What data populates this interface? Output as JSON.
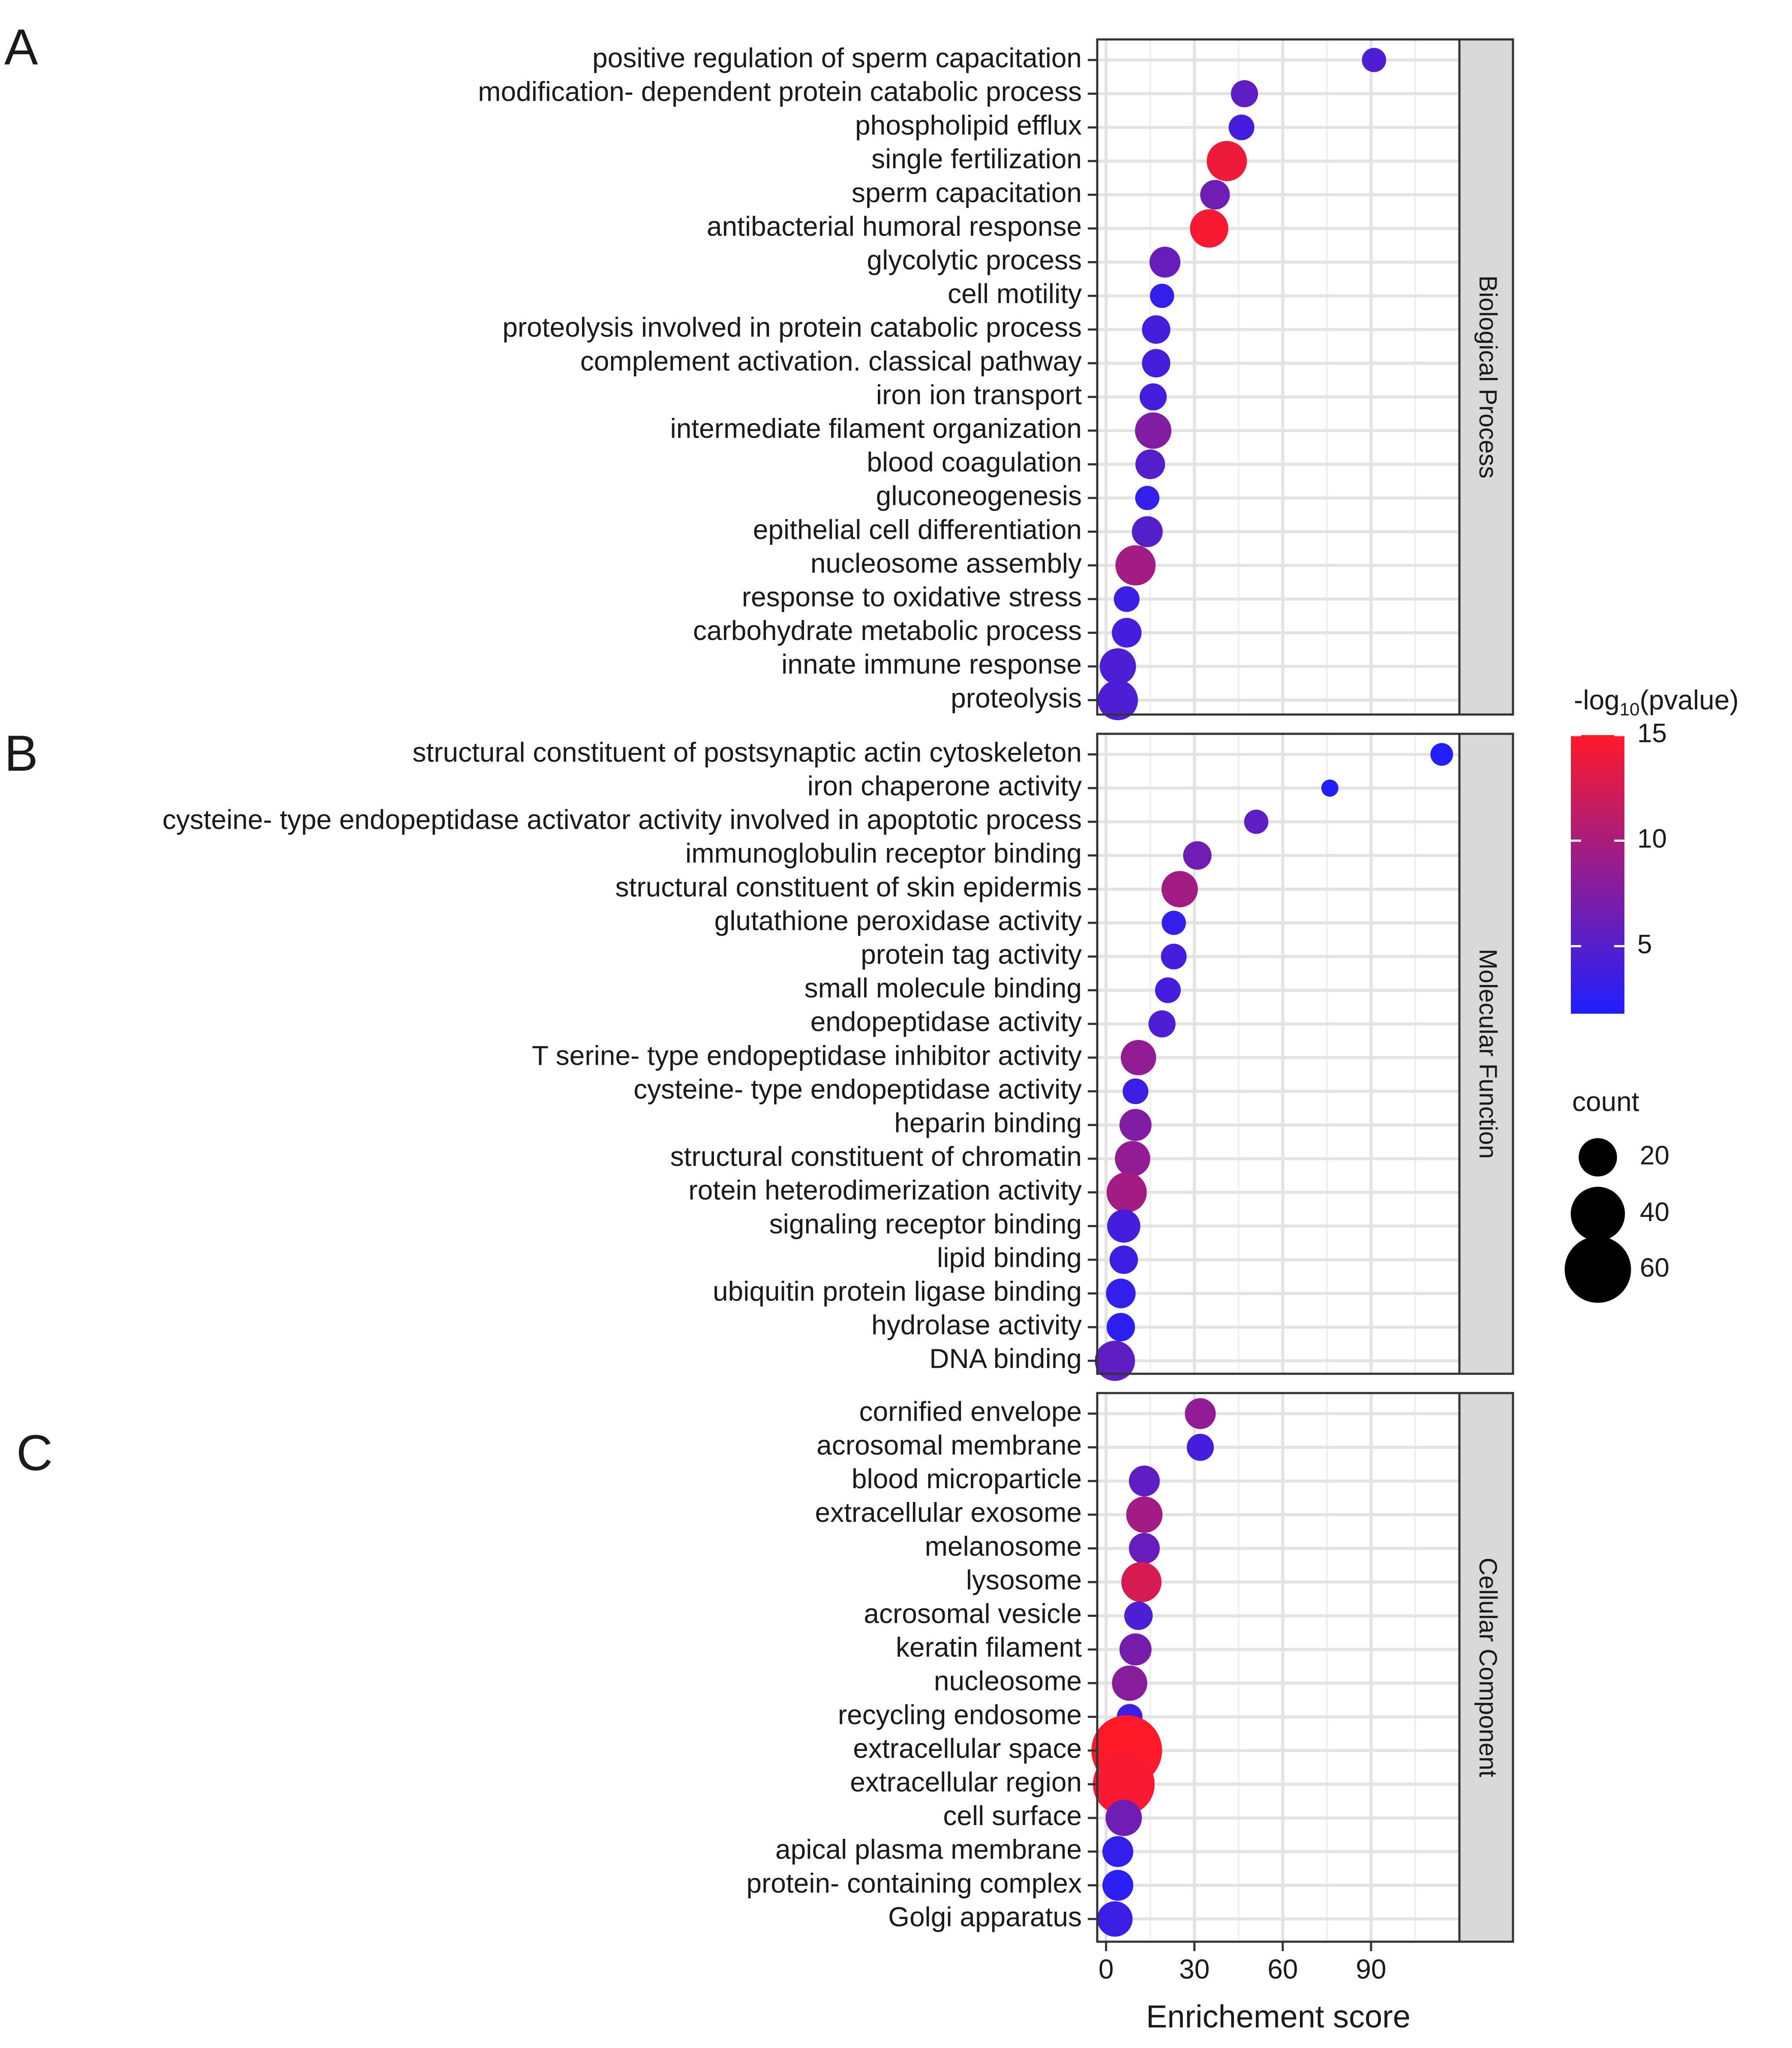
{
  "chart_data": {
    "type": "scatter",
    "subtype": "faceted-dot-plot",
    "xlabel": "Enrichement score",
    "x_ticks": [
      0,
      30,
      60,
      90
    ],
    "xlim": [
      -3,
      120
    ],
    "color_legend": {
      "title_prefix": "-log",
      "title_subscript": "10",
      "title_suffix": "(pvalue)",
      "min": 1.8,
      "max": 15,
      "ticks": [
        5,
        10,
        15
      ],
      "low_color": "#1f1fff",
      "high_color": "#ff1a2a"
    },
    "size_legend": {
      "title": "count",
      "values": [
        20,
        40,
        60
      ]
    },
    "panels": [
      {
        "letter": "A",
        "facet": "Biological Process",
        "terms": [
          {
            "label": "positive regulation of sperm capacitation",
            "score": 91,
            "neglog10p": 4.5,
            "count": 8
          },
          {
            "label": "modification- dependent protein catabolic process",
            "score": 47,
            "neglog10p": 5.5,
            "count": 10
          },
          {
            "label": "phospholipid efflux",
            "score": 46,
            "neglog10p": 4.0,
            "count": 9
          },
          {
            "label": "single fertilization",
            "score": 41,
            "neglog10p": 14.0,
            "count": 22
          },
          {
            "label": "sperm capacitation",
            "score": 37,
            "neglog10p": 6.5,
            "count": 12
          },
          {
            "label": "antibacterial humoral response",
            "score": 35,
            "neglog10p": 14.5,
            "count": 20
          },
          {
            "label": "glycolytic process",
            "score": 20,
            "neglog10p": 6.0,
            "count": 13
          },
          {
            "label": "cell motility",
            "score": 19,
            "neglog10p": 3.0,
            "count": 8
          },
          {
            "label": "proteolysis involved in protein catabolic process",
            "score": 17,
            "neglog10p": 4.0,
            "count": 11
          },
          {
            "label": "complement activation. classical pathway",
            "score": 17,
            "neglog10p": 4.0,
            "count": 11
          },
          {
            "label": "iron ion transport",
            "score": 16,
            "neglog10p": 4.0,
            "count": 10
          },
          {
            "label": "intermediate filament organization",
            "score": 16,
            "neglog10p": 7.5,
            "count": 18
          },
          {
            "label": "blood coagulation",
            "score": 15,
            "neglog10p": 5.0,
            "count": 12
          },
          {
            "label": "gluconeogenesis",
            "score": 14,
            "neglog10p": 3.0,
            "count": 8
          },
          {
            "label": "epithelial cell differentiation",
            "score": 14,
            "neglog10p": 5.0,
            "count": 13
          },
          {
            "label": "nucleosome assembly",
            "score": 10,
            "neglog10p": 9.5,
            "count": 22
          },
          {
            "label": "response to oxidative stress",
            "score": 7,
            "neglog10p": 3.5,
            "count": 9
          },
          {
            "label": "carbohydrate metabolic process",
            "score": 7,
            "neglog10p": 4.0,
            "count": 12
          },
          {
            "label": "innate immune response",
            "score": 4,
            "neglog10p": 4.5,
            "count": 18
          },
          {
            "label": "proteolysis",
            "score": 4,
            "neglog10p": 4.5,
            "count": 22
          }
        ]
      },
      {
        "letter": "B",
        "facet": "Molecular Function",
        "terms": [
          {
            "label": "structural constituent of postsynaptic actin cytoskeleton",
            "score": 114,
            "neglog10p": 2.0,
            "count": 7
          },
          {
            "label": "iron chaperone activity",
            "score": 76,
            "neglog10p": 2.0,
            "count": 4
          },
          {
            "label": "cysteine- type endopeptidase activator activity involved in apoptotic process",
            "score": 51,
            "neglog10p": 5.5,
            "count": 8
          },
          {
            "label": "immunoglobulin receptor binding",
            "score": 31,
            "neglog10p": 6.5,
            "count": 11
          },
          {
            "label": "structural constituent of skin epidermis",
            "score": 25,
            "neglog10p": 9.5,
            "count": 18
          },
          {
            "label": "glutathione peroxidase activity",
            "score": 23,
            "neglog10p": 3.0,
            "count": 8
          },
          {
            "label": "protein tag activity",
            "score": 23,
            "neglog10p": 4.0,
            "count": 9
          },
          {
            "label": "small molecule binding",
            "score": 21,
            "neglog10p": 4.0,
            "count": 9
          },
          {
            "label": "endopeptidase activity",
            "score": 19,
            "neglog10p": 4.5,
            "count": 10
          },
          {
            "label": "T serine- type endopeptidase inhibitor activity",
            "score": 11,
            "neglog10p": 8.5,
            "count": 17
          },
          {
            "label": "cysteine- type endopeptidase activity",
            "score": 10,
            "neglog10p": 3.5,
            "count": 9
          },
          {
            "label": "heparin binding",
            "score": 10,
            "neglog10p": 7.5,
            "count": 14
          },
          {
            "label": "structural constituent of chromatin",
            "score": 9,
            "neglog10p": 8.5,
            "count": 17
          },
          {
            "label": "rotein heterodimerization activity",
            "score": 7,
            "neglog10p": 9.5,
            "count": 22
          },
          {
            "label": "signaling receptor binding",
            "score": 6,
            "neglog10p": 4.0,
            "count": 15
          },
          {
            "label": "lipid binding",
            "score": 6,
            "neglog10p": 3.5,
            "count": 11
          },
          {
            "label": "ubiquitin protein ligase binding",
            "score": 5,
            "neglog10p": 3.0,
            "count": 12
          },
          {
            "label": "hydrolase activity",
            "score": 5,
            "neglog10p": 2.5,
            "count": 11
          },
          {
            "label": "DNA binding",
            "score": 3,
            "neglog10p": 5.5,
            "count": 22
          }
        ]
      },
      {
        "letter": "C",
        "facet": "Cellular Component",
        "terms": [
          {
            "label": "cornified envelope",
            "score": 32,
            "neglog10p": 8.5,
            "count": 13
          },
          {
            "label": "acrosomal membrane",
            "score": 32,
            "neglog10p": 4.0,
            "count": 10
          },
          {
            "label": "blood microparticle",
            "score": 13,
            "neglog10p": 5.5,
            "count": 13
          },
          {
            "label": "extracellular exosome",
            "score": 13,
            "neglog10p": 9.5,
            "count": 18
          },
          {
            "label": "melanosome",
            "score": 13,
            "neglog10p": 6.0,
            "count": 13
          },
          {
            "label": "lysosome",
            "score": 12,
            "neglog10p": 12.5,
            "count": 22
          },
          {
            "label": "acrosomal vesicle",
            "score": 11,
            "neglog10p": 4.5,
            "count": 11
          },
          {
            "label": "keratin filament",
            "score": 10,
            "neglog10p": 7.0,
            "count": 14
          },
          {
            "label": "nucleosome",
            "score": 8,
            "neglog10p": 8.0,
            "count": 17
          },
          {
            "label": "recycling endosome",
            "score": 8,
            "neglog10p": 3.5,
            "count": 9
          },
          {
            "label": "extracellular space",
            "score": 7,
            "neglog10p": 15.0,
            "count": 68
          },
          {
            "label": "extracellular region",
            "score": 6,
            "neglog10p": 14.5,
            "count": 52
          },
          {
            "label": "cell surface",
            "score": 6,
            "neglog10p": 6.5,
            "count": 18
          },
          {
            "label": "apical plasma membrane",
            "score": 4,
            "neglog10p": 3.0,
            "count": 13
          },
          {
            "label": "protein- containing complex",
            "score": 4,
            "neglog10p": 2.5,
            "count": 13
          },
          {
            "label": "Golgi apparatus",
            "score": 3,
            "neglog10p": 3.5,
            "count": 17
          }
        ]
      }
    ]
  }
}
